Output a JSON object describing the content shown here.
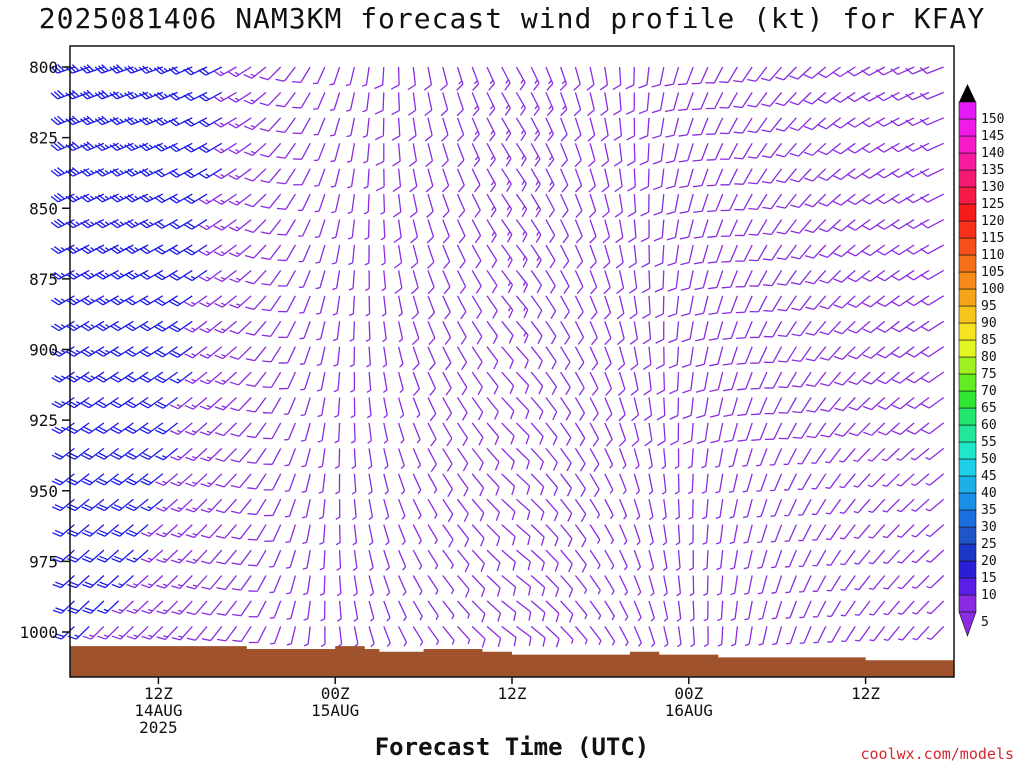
{
  "title": "2025081406 NAM3KM forecast wind profile (kt) for KFAY",
  "credit": "coolwx.com/models",
  "chart_data": {
    "type": "wind-barb-timeseries",
    "title": "2025081406 NAM3KM forecast wind profile (kt) for KFAY",
    "xlabel": "Forecast Time (UTC)",
    "ylabel": "",
    "ylim": [
      1010,
      790
    ],
    "y_ticks": [
      800,
      825,
      850,
      875,
      900,
      925,
      950,
      975,
      1000
    ],
    "x_ticks": [
      {
        "hour": 6,
        "labels": [
          "12Z",
          "14AUG",
          "2025"
        ]
      },
      {
        "hour": 18,
        "labels": [
          "00Z",
          "15AUG"
        ]
      },
      {
        "hour": 30,
        "labels": [
          "12Z"
        ]
      },
      {
        "hour": 42,
        "labels": [
          "00Z",
          "16AUG"
        ]
      },
      {
        "hour": 54,
        "labels": [
          "12Z"
        ]
      }
    ],
    "x_range_hours": [
      0,
      60
    ],
    "pressure_levels": [
      800,
      809,
      818,
      827,
      836,
      845,
      854,
      863,
      872,
      881,
      890,
      899,
      908,
      917,
      926,
      935,
      944,
      953,
      962,
      971,
      980,
      989,
      998
    ],
    "sample_wind_profiles": [
      {
        "hour": 0,
        "dir": 250,
        "spd": 30
      },
      {
        "hour": 6,
        "dir": 250,
        "spd": 25
      },
      {
        "hour": 12,
        "dir": 240,
        "spd": 15
      },
      {
        "hour": 18,
        "dir": 200,
        "spd": 5
      },
      {
        "hour": 24,
        "dir": 170,
        "spd": 10
      },
      {
        "hour": 30,
        "dir": 150,
        "spd": 15
      },
      {
        "hour": 36,
        "dir": 170,
        "spd": 10
      },
      {
        "hour": 42,
        "dir": 200,
        "spd": 10
      },
      {
        "hour": 48,
        "dir": 220,
        "spd": 10
      },
      {
        "hour": 54,
        "dir": 240,
        "spd": 10
      },
      {
        "hour": 60,
        "dir": 250,
        "spd": 10
      }
    ],
    "surface_pressure": [
      {
        "hour": 0,
        "p": 1005
      },
      {
        "hour": 6,
        "p": 1005
      },
      {
        "hour": 12,
        "p": 1006
      },
      {
        "hour": 15,
        "p": 1006
      },
      {
        "hour": 18,
        "p": 1005
      },
      {
        "hour": 20,
        "p": 1006
      },
      {
        "hour": 21,
        "p": 1007
      },
      {
        "hour": 24,
        "p": 1006
      },
      {
        "hour": 28,
        "p": 1007
      },
      {
        "hour": 30,
        "p": 1008
      },
      {
        "hour": 36,
        "p": 1008
      },
      {
        "hour": 38,
        "p": 1007
      },
      {
        "hour": 40,
        "p": 1008
      },
      {
        "hour": 44,
        "p": 1009
      },
      {
        "hour": 50,
        "p": 1009
      },
      {
        "hour": 54,
        "p": 1010
      },
      {
        "hour": 60,
        "p": 1009
      }
    ],
    "colorbar": {
      "labels": [
        "5",
        "10",
        "15",
        "20",
        "25",
        "30",
        "35",
        "40",
        "45",
        "50",
        "55",
        "60",
        "65",
        "70",
        "75",
        "80",
        "85",
        "90",
        "95",
        "100",
        "105",
        "110",
        "115",
        "120",
        "125",
        "130",
        "135",
        "140",
        "145",
        "150"
      ],
      "colors": [
        "#8a2be2",
        "#5a1ee6",
        "#2a1fd9",
        "#1c37c8",
        "#1f55c8",
        "#1a6fe0",
        "#1890e6",
        "#1cb0e6",
        "#1fd1e8",
        "#22e6c8",
        "#22e69a",
        "#22e66e",
        "#30e630",
        "#64ec22",
        "#a0f022",
        "#e4f622",
        "#f6e422",
        "#f6c41a",
        "#f6a41a",
        "#f68a1a",
        "#f6701a",
        "#f6501a",
        "#f6301a",
        "#f61a1a",
        "#f61a46",
        "#f61a72",
        "#f61a9e",
        "#f61ac8",
        "#f21ae6",
        "#e61af6"
      ]
    },
    "surface_color": "#a0522d",
    "barb_color_light": "#8a2be2",
    "barb_color_strong": "#1a1ae6"
  }
}
